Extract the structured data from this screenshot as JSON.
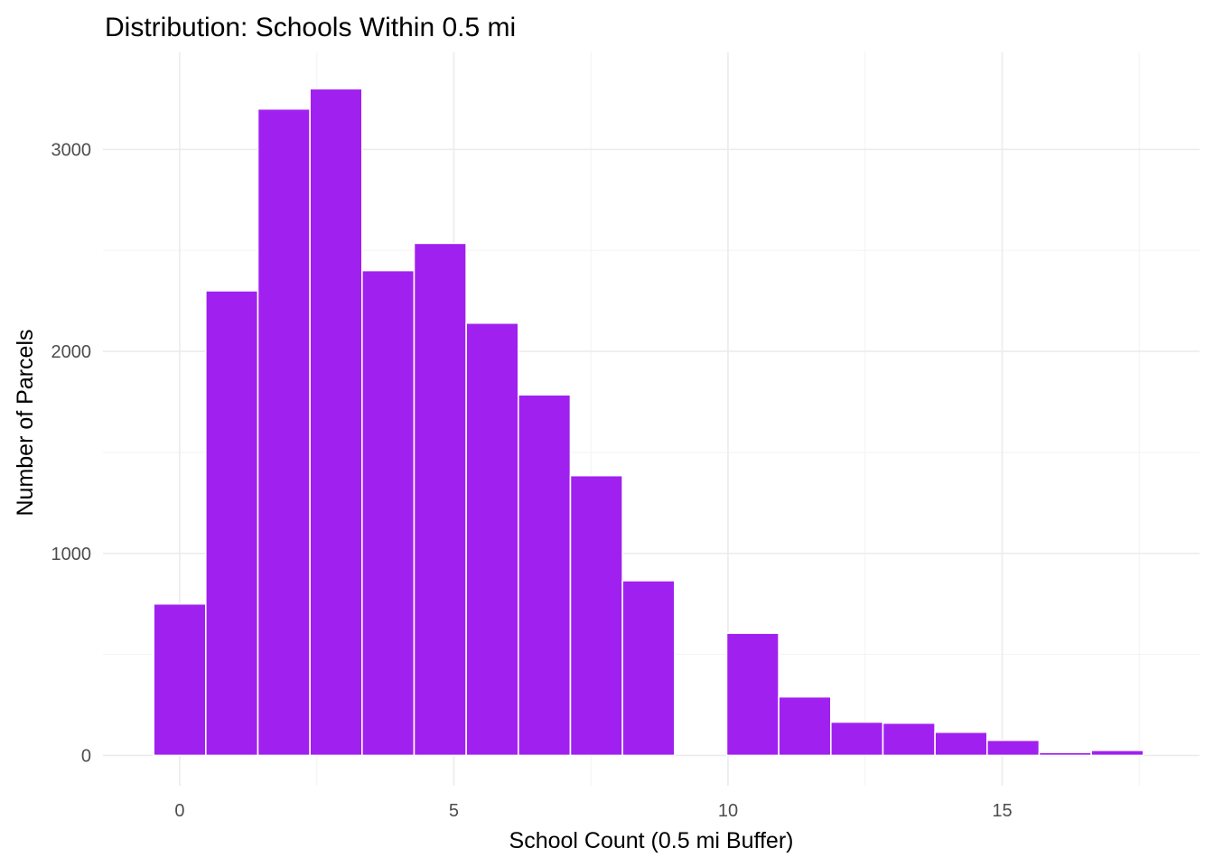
{
  "chart_data": {
    "type": "bar",
    "title": "Distribution: Schools Within 0.5 mi",
    "xlabel": "School Count (0.5 mi Buffer)",
    "ylabel": "Number of Parcels",
    "bar_color": "#a020f0",
    "grid": true,
    "xlim": [
      -1.4,
      18.6
    ],
    "ylim": [
      -150,
      3480
    ],
    "x_ticks": [
      0,
      5,
      10,
      15
    ],
    "x_minor_ticks": [
      -2.5,
      2.5,
      7.5,
      12.5,
      17.5
    ],
    "y_ticks": [
      0,
      1000,
      2000,
      3000
    ],
    "y_minor_ticks": [
      500,
      1500,
      2500
    ],
    "bin_width": 0.95,
    "bins": [
      {
        "x": 0.0,
        "count": 750
      },
      {
        "x": 0.95,
        "count": 2300
      },
      {
        "x": 1.9,
        "count": 3200
      },
      {
        "x": 2.85,
        "count": 3300
      },
      {
        "x": 3.8,
        "count": 2400
      },
      {
        "x": 4.75,
        "count": 2535
      },
      {
        "x": 5.7,
        "count": 2140
      },
      {
        "x": 6.65,
        "count": 1785
      },
      {
        "x": 7.6,
        "count": 1385
      },
      {
        "x": 8.55,
        "count": 865
      },
      {
        "x": 9.5,
        "count": 0
      },
      {
        "x": 10.45,
        "count": 605
      },
      {
        "x": 11.4,
        "count": 290
      },
      {
        "x": 12.35,
        "count": 165
      },
      {
        "x": 13.3,
        "count": 160
      },
      {
        "x": 14.25,
        "count": 115
      },
      {
        "x": 15.2,
        "count": 75
      },
      {
        "x": 16.15,
        "count": 15
      },
      {
        "x": 17.1,
        "count": 25
      }
    ]
  }
}
